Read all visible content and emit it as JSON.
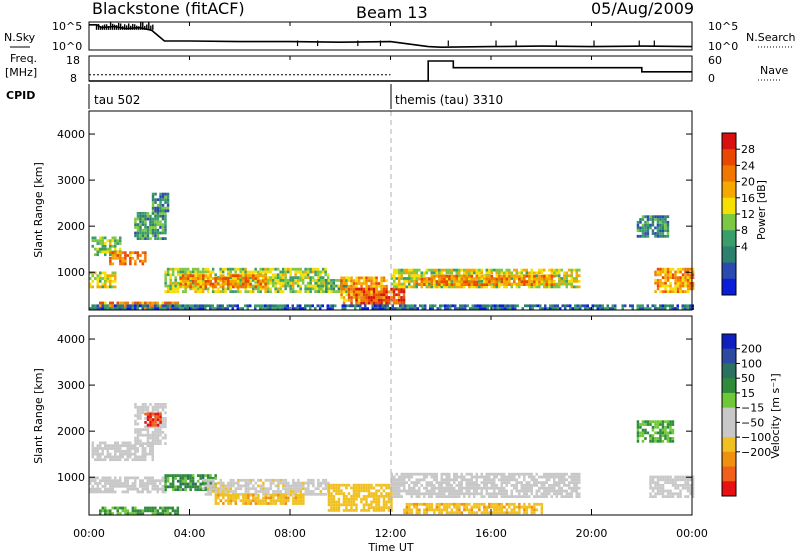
{
  "header": {
    "station": "Blackstone (fitACF)",
    "beam": "Beam 13",
    "date": "05/Aug/2009"
  },
  "strip": {
    "nsky_label": "N.Sky",
    "nsearch_label": "N.Search",
    "nsky_tick_top": "10^5",
    "nsky_tick_bottom": "10^0",
    "nsearch_tick_top": "10^5",
    "nsearch_tick_bottom": "10^0",
    "freq_label_1": "Freq.",
    "freq_label_2": "[MHz]",
    "freq_tick_top": "18",
    "freq_tick_bottom": "8",
    "nave_label": "Nave",
    "nave_tick_top": "60",
    "nave_tick_bottom": "0",
    "cpid_label": "CPID",
    "cpid_1": "tau 502",
    "cpid_2": "themis (tau) 3310"
  },
  "axes": {
    "xlabel": "Time UT",
    "ylabel": "Slant Range [km]",
    "xticks": [
      "00:00",
      "04:00",
      "08:00",
      "12:00",
      "16:00",
      "20:00",
      "00:00"
    ],
    "yticks": [
      "1000",
      "2000",
      "3000",
      "4000"
    ]
  },
  "colorbars": {
    "power": {
      "label": "Power [dB]",
      "ticks": [
        "4",
        "8",
        "12",
        "16",
        "20",
        "24",
        "28"
      ],
      "colors": [
        "#0a1ed8",
        "#2a4ab0",
        "#2d7f6e",
        "#3a9e6a",
        "#7cc840",
        "#f5e000",
        "#f5a800",
        "#f07800",
        "#e84800",
        "#d81010"
      ]
    },
    "velocity": {
      "label": "Velocity [m s⁻¹]",
      "ticks": [
        "200",
        "100",
        "50",
        "15",
        "−15",
        "−50",
        "−100",
        "−200"
      ],
      "colors": [
        "#1020c0",
        "#2c4aa0",
        "#2c7060",
        "#2f8a3a",
        "#6fc838",
        "#c8c8c8",
        "#c8c8c8",
        "#f0c020",
        "#f09010",
        "#f06018",
        "#e81010"
      ]
    }
  },
  "chart_data": [
    {
      "type": "line",
      "name": "N.Sky / N.Search strip",
      "x_unit": "hours UT",
      "x": [
        0,
        0.3,
        0.5,
        1,
        1.5,
        2,
        2.5,
        3,
        4,
        6,
        8,
        10,
        12,
        13.5,
        14,
        16,
        18,
        20,
        22,
        24
      ],
      "nsky_log10": [
        4.5,
        4.5,
        4.0,
        4.2,
        3.8,
        4.0,
        3.5,
        1.6,
        1.6,
        1.5,
        1.5,
        1.4,
        1.5,
        0.6,
        0.5,
        0.6,
        0.7,
        0.6,
        0.7,
        0.6
      ],
      "ylim": [
        0,
        5
      ]
    },
    {
      "type": "line",
      "name": "Freq / Nave strip",
      "x_unit": "hours UT",
      "freq_mhz_x": [
        0,
        12
      ],
      "freq_mhz": [
        10.5,
        10.5
      ],
      "nave_x": [
        0,
        12,
        12.2,
        13.5,
        13.5,
        14.5,
        14.5,
        22.0,
        22.0,
        24
      ],
      "nave": [
        0,
        0,
        0,
        0,
        48,
        48,
        32,
        32,
        22,
        22
      ],
      "freq_ylim": [
        8,
        18
      ],
      "nave_ylim": [
        0,
        60
      ]
    },
    {
      "type": "heatmap",
      "title": "Power [dB]",
      "x_range_hours": [
        0,
        24
      ],
      "y_range_km": [
        180,
        4500
      ],
      "z_range": [
        0,
        30
      ],
      "regions": [
        {
          "t0": 0.0,
          "t1": 1.0,
          "r0": 650,
          "r1": 1000,
          "v": 16
        },
        {
          "t0": 0.1,
          "t1": 1.2,
          "r0": 1350,
          "r1": 1750,
          "v": 14
        },
        {
          "t0": 0.8,
          "t1": 2.2,
          "r0": 1150,
          "r1": 1450,
          "v": 22
        },
        {
          "t0": 1.8,
          "t1": 3.0,
          "r0": 1700,
          "r1": 2300,
          "v": 10
        },
        {
          "t0": 2.5,
          "t1": 3.1,
          "r0": 2300,
          "r1": 2700,
          "v": 9
        },
        {
          "t0": 0.4,
          "t1": 3.5,
          "r0": 180,
          "r1": 330,
          "v": 22
        },
        {
          "t0": 3.0,
          "t1": 9.5,
          "r0": 550,
          "r1": 1050,
          "v": 14
        },
        {
          "t0": 3.6,
          "t1": 7.0,
          "r0": 650,
          "r1": 900,
          "v": 22
        },
        {
          "t0": 9.0,
          "t1": 10.2,
          "r0": 550,
          "r1": 800,
          "v": 12
        },
        {
          "t0": 10.0,
          "t1": 11.8,
          "r0": 300,
          "r1": 900,
          "v": 20
        },
        {
          "t0": 10.6,
          "t1": 12.5,
          "r0": 300,
          "r1": 650,
          "v": 25
        },
        {
          "t0": 12.0,
          "t1": 19.5,
          "r0": 650,
          "r1": 1050,
          "v": 16
        },
        {
          "t0": 13.0,
          "t1": 18.5,
          "r0": 700,
          "r1": 900,
          "v": 22
        },
        {
          "t0": 21.8,
          "t1": 23.0,
          "r0": 1750,
          "r1": 2200,
          "v": 8
        },
        {
          "t0": 22.5,
          "t1": 24.0,
          "r0": 550,
          "r1": 1050,
          "v": 20
        },
        {
          "t0": 0.0,
          "t1": 24.0,
          "r0": 180,
          "r1": 270,
          "v": 6
        }
      ]
    },
    {
      "type": "heatmap",
      "title": "Velocity [m s-1]",
      "x_range_hours": [
        0,
        24
      ],
      "y_range_km": [
        180,
        4500
      ],
      "z_range": [
        -200,
        200
      ],
      "regions": [
        {
          "t0": 0.0,
          "t1": 3.0,
          "r0": 650,
          "r1": 1000,
          "v": 0
        },
        {
          "t0": 0.1,
          "t1": 2.5,
          "r0": 1350,
          "r1": 1750,
          "v": 0
        },
        {
          "t0": 1.8,
          "t1": 3.0,
          "r0": 1700,
          "r1": 2600,
          "v": 0
        },
        {
          "t0": 2.2,
          "t1": 2.8,
          "r0": 2100,
          "r1": 2400,
          "v": -150
        },
        {
          "t0": 3.0,
          "t1": 5.0,
          "r0": 700,
          "r1": 1050,
          "v": 40
        },
        {
          "t0": 4.5,
          "t1": 9.5,
          "r0": 600,
          "r1": 950,
          "v": -5
        },
        {
          "t0": 5.0,
          "t1": 8.5,
          "r0": 400,
          "r1": 600,
          "v": -40
        },
        {
          "t0": 0.4,
          "t1": 3.5,
          "r0": 180,
          "r1": 320,
          "v": 35
        },
        {
          "t0": 9.5,
          "t1": 12.0,
          "r0": 250,
          "r1": 800,
          "v": -35
        },
        {
          "t0": 12.0,
          "t1": 19.5,
          "r0": 550,
          "r1": 1050,
          "v": 0
        },
        {
          "t0": 12.5,
          "t1": 18.0,
          "r0": 200,
          "r1": 400,
          "v": -40
        },
        {
          "t0": 21.8,
          "t1": 23.2,
          "r0": 1750,
          "r1": 2200,
          "v": 30
        },
        {
          "t0": 22.3,
          "t1": 24.0,
          "r0": 550,
          "r1": 1000,
          "v": 0
        }
      ]
    }
  ]
}
